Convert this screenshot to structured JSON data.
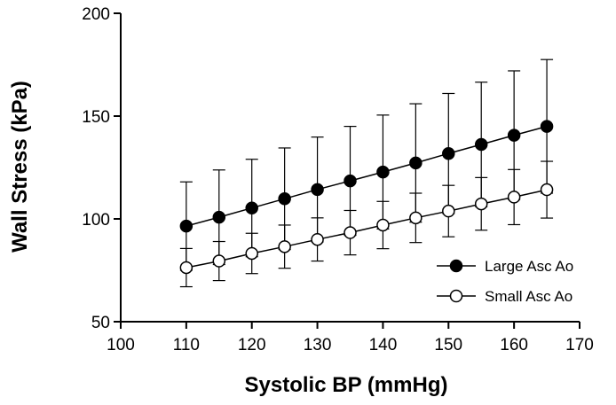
{
  "chart_data": {
    "type": "line",
    "title": "",
    "xlabel": "Systolic BP (mmHg)",
    "ylabel": "Wall Stress (kPa)",
    "xlim": [
      100,
      170
    ],
    "ylim": [
      50,
      200
    ],
    "xticks": [
      100,
      110,
      120,
      130,
      140,
      150,
      160,
      170
    ],
    "yticks": [
      50,
      100,
      150,
      200
    ],
    "x": [
      110,
      115,
      120,
      125,
      130,
      135,
      140,
      145,
      150,
      155,
      160,
      165
    ],
    "series": [
      {
        "name": "Large Asc Ao",
        "marker": "filled-circle",
        "values": [
          96.5,
          100.8,
          105.3,
          109.8,
          114.3,
          118.5,
          122.8,
          127.2,
          131.8,
          136.2,
          140.7,
          145.0
        ],
        "error": [
          21.5,
          23.0,
          23.7,
          24.7,
          25.5,
          26.5,
          27.7,
          28.8,
          29.2,
          30.3,
          31.3,
          32.5
        ]
      },
      {
        "name": "Small Asc Ao",
        "marker": "open-circle",
        "values": [
          76.3,
          79.5,
          83.2,
          86.5,
          90.0,
          93.3,
          97.0,
          100.5,
          103.8,
          107.3,
          110.6,
          114.2
        ],
        "error": [
          9.3,
          9.5,
          9.8,
          10.5,
          10.5,
          10.8,
          11.5,
          12.0,
          12.5,
          12.8,
          13.4,
          13.8
        ]
      }
    ],
    "legend": "bottom-right",
    "grid": false
  }
}
